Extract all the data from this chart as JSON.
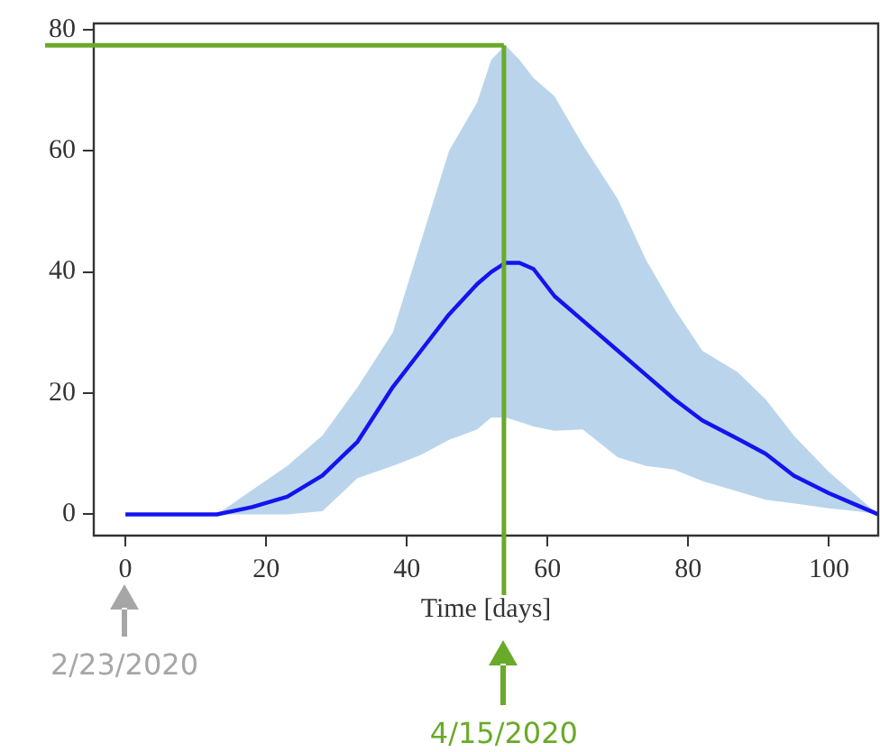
{
  "chart_data": {
    "type": "line",
    "xlabel": "Time [days]",
    "xlim": [
      -4.5,
      107
    ],
    "xticks": [
      0,
      20,
      40,
      60,
      80,
      100
    ],
    "ylim": [
      -3.5,
      81
    ],
    "yticks": [
      0,
      20,
      40,
      60,
      80
    ],
    "grid": false,
    "legend": false,
    "x": [
      0,
      5,
      10,
      13,
      18,
      23,
      28,
      33,
      38,
      42,
      46,
      50,
      52,
      54,
      56,
      58,
      61,
      65,
      70,
      74,
      78,
      82,
      87,
      91,
      95,
      100,
      104,
      107
    ],
    "series": [
      {
        "color": "#1414f0",
        "values": [
          0,
          0,
          0,
          0,
          1.2,
          2.9,
          6.4,
          12,
          21,
          27,
          33,
          38,
          40,
          41.5,
          41.5,
          40.5,
          36,
          32,
          27,
          23,
          19,
          15.5,
          12.5,
          10,
          6.4,
          3.5,
          1.5,
          0
        ],
        "upper": [
          0,
          0,
          0,
          0,
          4,
          8,
          13,
          21,
          30,
          45,
          60,
          68,
          75,
          77.4,
          75,
          72,
          69,
          61,
          52,
          42,
          34,
          27,
          23.5,
          19,
          13,
          7,
          3,
          0
        ],
        "lower": [
          0,
          0,
          0,
          0,
          0,
          0,
          0.5,
          6,
          8,
          9.8,
          12.3,
          14,
          16,
          16,
          15.3,
          14.5,
          13.8,
          14,
          9.4,
          8,
          7.4,
          5.5,
          3.8,
          2.4,
          1.8,
          1,
          0.5,
          0
        ]
      }
    ],
    "ref_lines": [
      {
        "axis": "x",
        "value": 53.8,
        "color": "#6aaa2a"
      },
      {
        "axis": "y",
        "value": 77.4,
        "color": "#6aaa2a"
      }
    ],
    "annotations": [
      "2/23/2020",
      "4/15/2020"
    ]
  }
}
